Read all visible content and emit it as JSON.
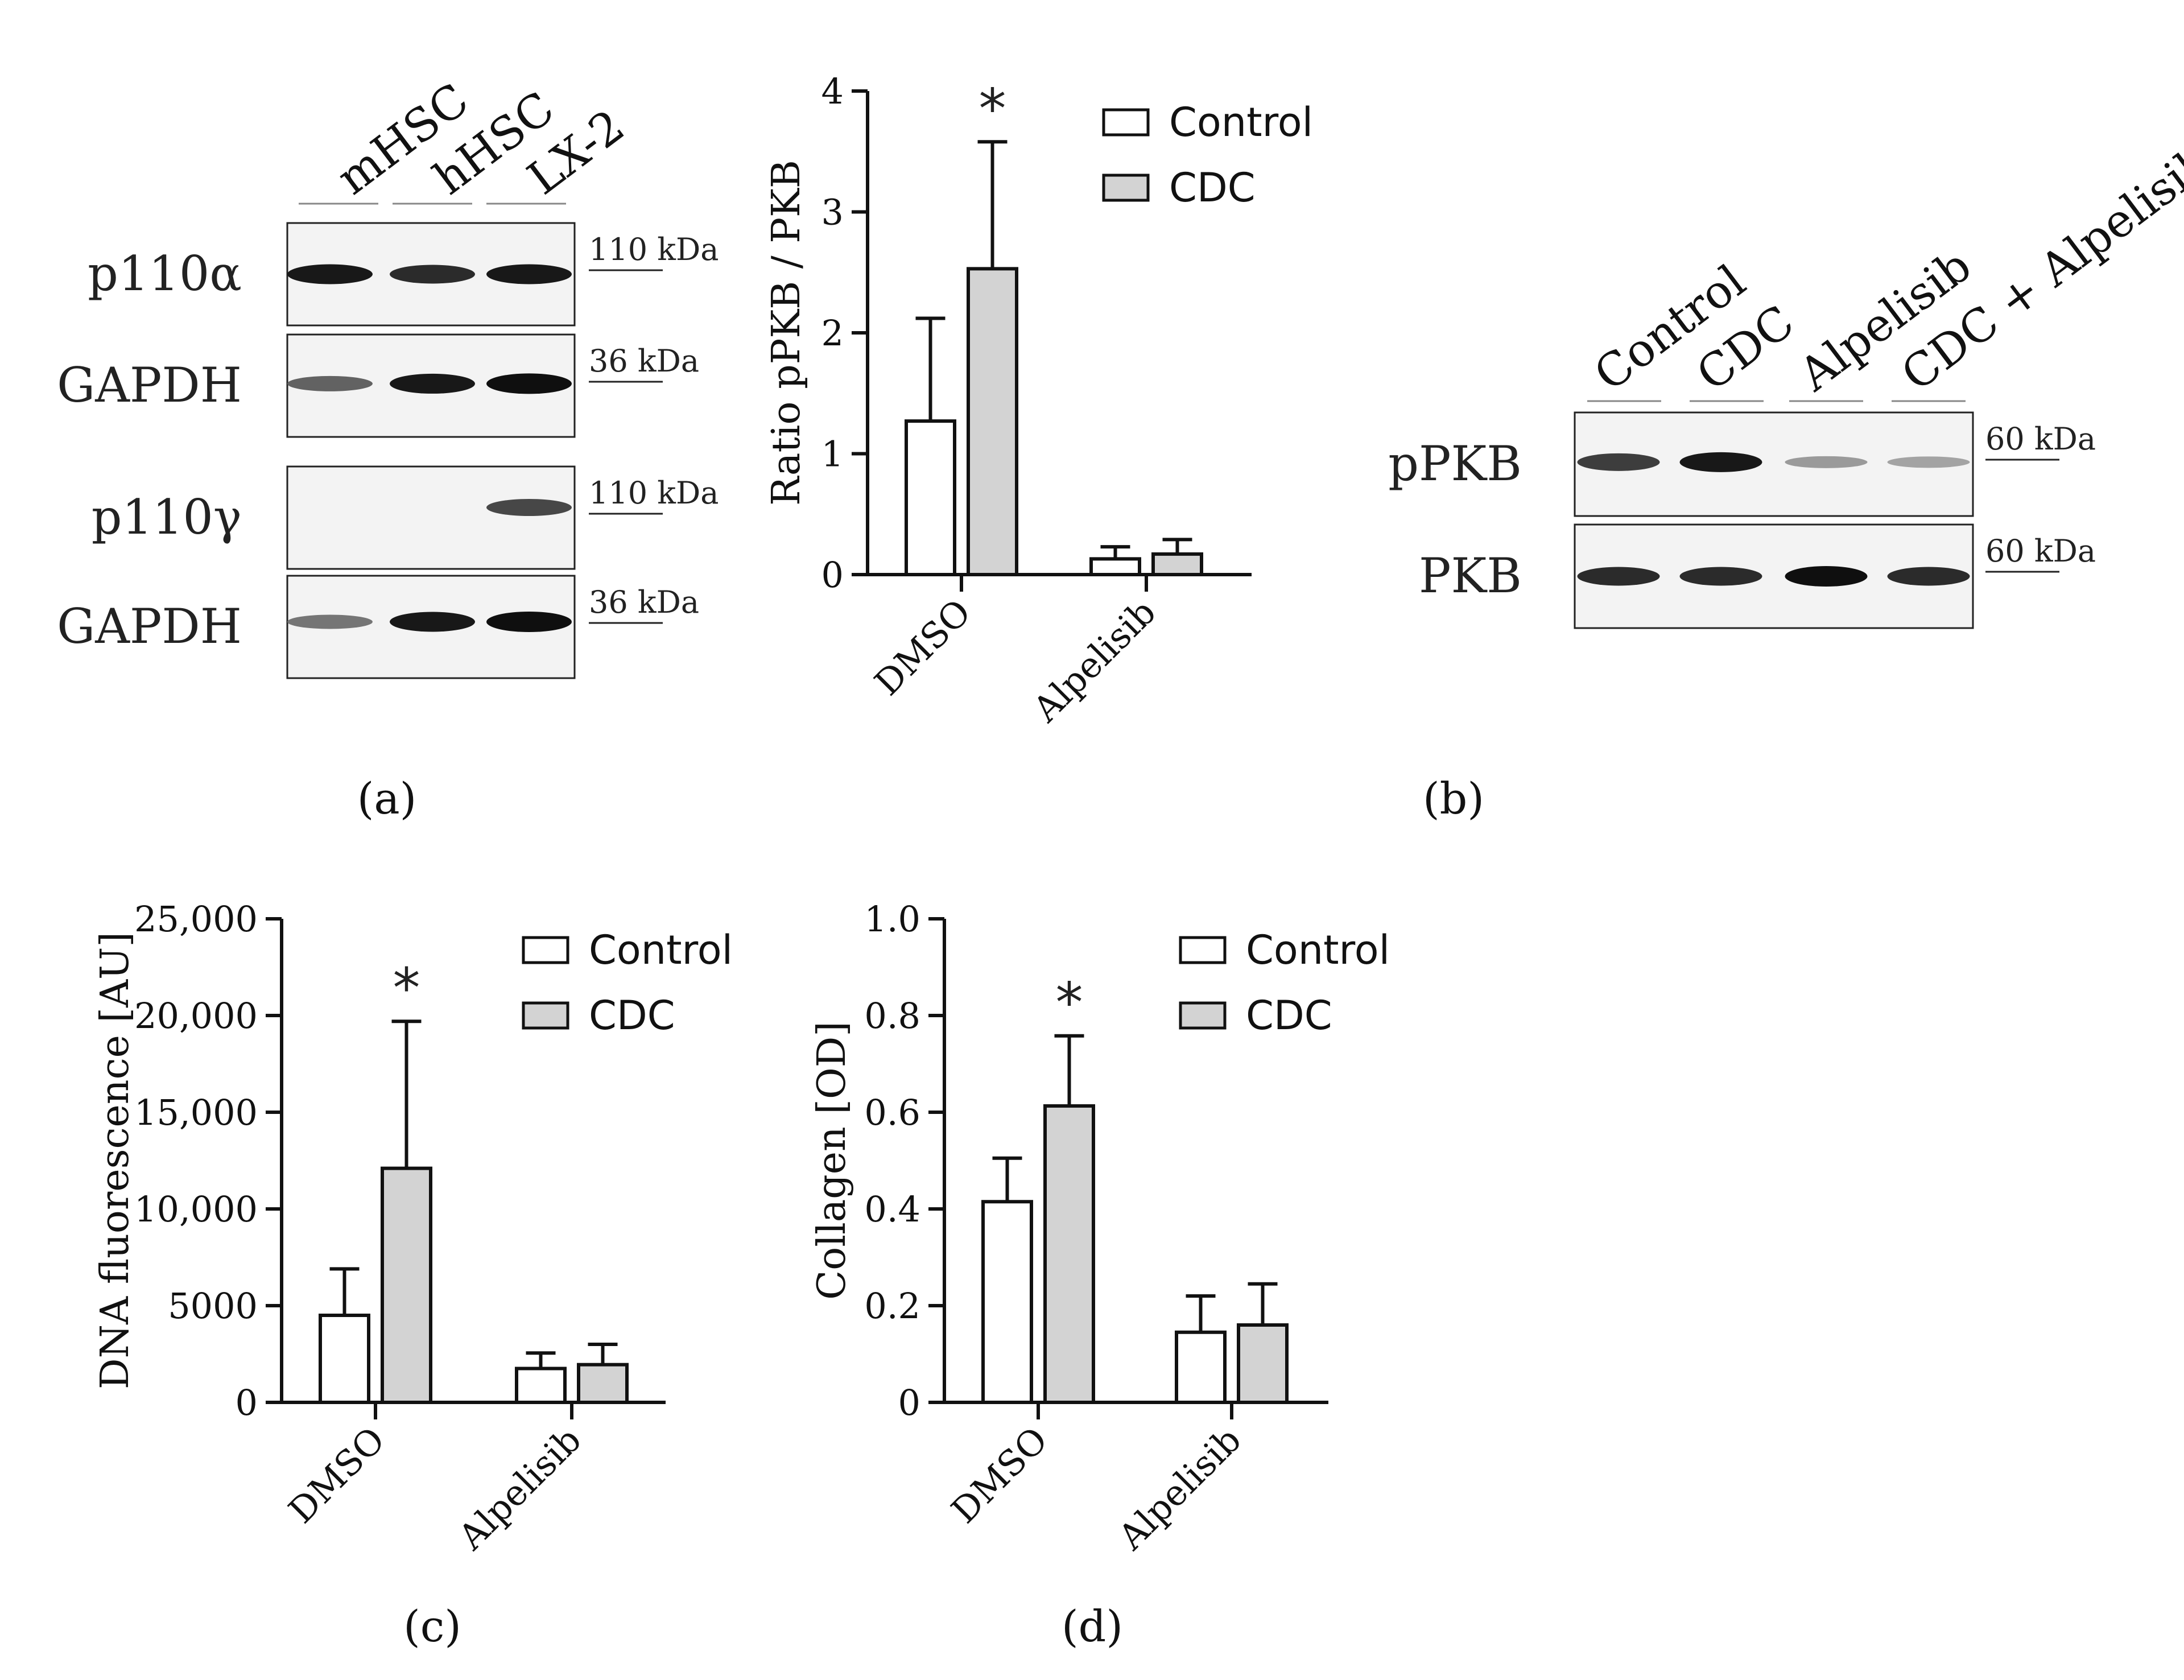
{
  "panel_labels": {
    "a": "(a)",
    "b": "(b)",
    "c": "(c)",
    "d": "(d)"
  },
  "blot_a": {
    "lanes": [
      "mHSC",
      "hHSC",
      "LX-2"
    ],
    "rows": [
      {
        "label": "p110α",
        "marker": "110 kDa",
        "intensities": [
          0.95,
          0.85,
          0.95
        ]
      },
      {
        "label": "GAPDH",
        "marker": "36 kDa",
        "intensities": [
          0.55,
          0.95,
          1.0
        ]
      },
      {
        "label": "p110γ",
        "marker": "110 kDa",
        "intensities": [
          0.0,
          0.0,
          0.7
        ]
      },
      {
        "label": "GAPDH",
        "marker": "36 kDa",
        "intensities": [
          0.45,
          0.95,
          1.0
        ]
      }
    ]
  },
  "blot_b": {
    "lanes": [
      "Control",
      "CDC",
      "Alpelisib",
      "CDC + Alpelisib"
    ],
    "rows": [
      {
        "label": "pPKB",
        "marker": "60 kDa",
        "intensities": [
          0.75,
          0.95,
          0.25,
          0.2
        ]
      },
      {
        "label": "PKB",
        "marker": "60 kDa",
        "intensities": [
          0.85,
          0.85,
          1.0,
          0.85
        ]
      }
    ]
  },
  "chart_data": [
    {
      "id": "pPKB-ratio",
      "type": "bar",
      "categories": [
        "DMSO",
        "Alpelisib"
      ],
      "series": [
        {
          "name": "Control",
          "values": [
            1.27,
            0.13
          ],
          "errors": [
            0.85,
            0.1
          ],
          "color": "#ffffff"
        },
        {
          "name": "CDC",
          "values": [
            2.53,
            0.17
          ],
          "errors": [
            1.05,
            0.12
          ],
          "color": "#d3d3d3"
        }
      ],
      "ylabel": "Ratio pPKB / PKB",
      "ylim": [
        0,
        4
      ],
      "yticks": [
        "0",
        "1",
        "2",
        "3",
        "4"
      ],
      "significance": [
        {
          "category": "DMSO",
          "series": "CDC",
          "mark": "*"
        }
      ],
      "legend": "top-right",
      "grid": false
    },
    {
      "id": "dna-fluorescence",
      "type": "bar",
      "categories": [
        "DMSO",
        "Alpelisib"
      ],
      "series": [
        {
          "name": "Control",
          "values": [
            4500,
            1750
          ],
          "errors": [
            2400,
            800
          ],
          "color": "#ffffff"
        },
        {
          "name": "CDC",
          "values": [
            12100,
            1950
          ],
          "errors": [
            7600,
            1050
          ],
          "color": "#d3d3d3"
        }
      ],
      "ylabel": "DNA fluorescence  [AU]",
      "ylim": [
        0,
        25000
      ],
      "yticks": [
        "0",
        "5000",
        "10,000",
        "15,000",
        "20,000",
        "25,000"
      ],
      "significance": [
        {
          "category": "DMSO",
          "series": "CDC",
          "mark": "*"
        }
      ],
      "legend": "top-right",
      "grid": false
    },
    {
      "id": "collagen",
      "type": "bar",
      "categories": [
        "DMSO",
        "Alpelisib"
      ],
      "series": [
        {
          "name": "Control",
          "values": [
            0.415,
            0.145
          ],
          "errors": [
            0.09,
            0.075
          ],
          "color": "#ffffff"
        },
        {
          "name": "CDC",
          "values": [
            0.613,
            0.16
          ],
          "errors": [
            0.145,
            0.085
          ],
          "color": "#d3d3d3"
        }
      ],
      "ylabel": "Collagen [OD]",
      "ylim": [
        0,
        1.0
      ],
      "yticks": [
        "0",
        "0.2",
        "0.4",
        "0.6",
        "0.8",
        "1.0"
      ],
      "significance": [
        {
          "category": "DMSO",
          "series": "CDC",
          "mark": "*"
        }
      ],
      "legend": "top-right",
      "grid": false
    }
  ]
}
